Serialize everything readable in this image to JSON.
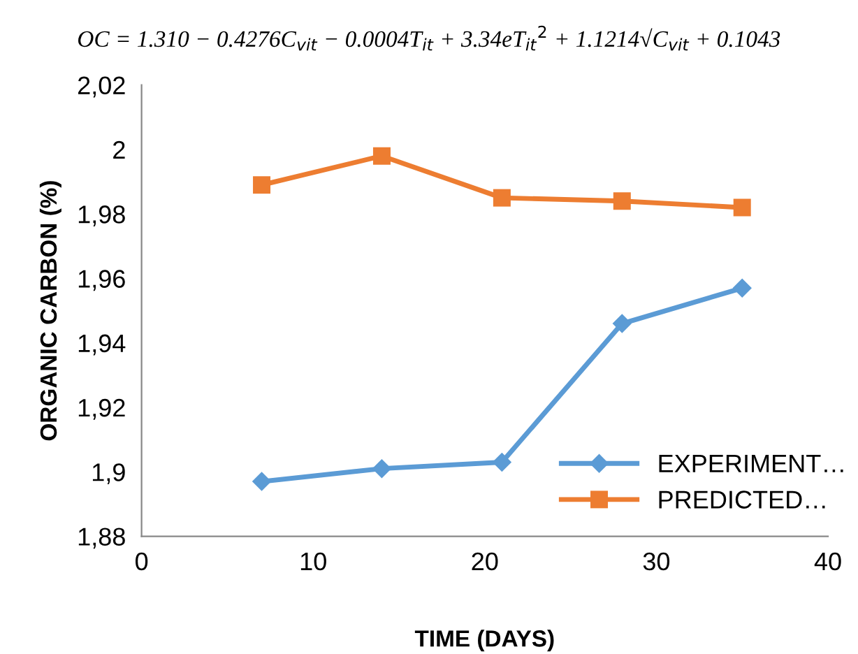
{
  "chart_data": {
    "type": "line",
    "title": "OC = 1.310 − 0.4276C$_{vit}$ − 0.0004T$_{it}$ + 3.34eT$_{it}$$^{2}$ + 1.1214√C$_{vit}$ + 0.1043",
    "xlabel": "TIME (DAYS)",
    "ylabel": "ORGANIC CARBON (%)",
    "x": [
      7,
      14,
      21,
      28,
      35
    ],
    "series": [
      {
        "name": "EXPERIMENT…",
        "color": "#5b9bd5",
        "marker": "diamond",
        "values": [
          1.897,
          1.901,
          1.903,
          1.946,
          1.957
        ]
      },
      {
        "name": "PREDICTED…",
        "color": "#ed7d31",
        "marker": "square",
        "values": [
          1.989,
          1.998,
          1.985,
          1.984,
          1.982
        ]
      }
    ],
    "xlim": [
      0,
      40
    ],
    "xticks": [
      0,
      10,
      20,
      30,
      40
    ],
    "ylim": [
      1.88,
      2.02
    ],
    "yticks": [
      {
        "value": 1.88,
        "label": "1,88"
      },
      {
        "value": 1.9,
        "label": "1,9"
      },
      {
        "value": 1.92,
        "label": "1,92"
      },
      {
        "value": 1.94,
        "label": "1,94"
      },
      {
        "value": 1.96,
        "label": "1,96"
      },
      {
        "value": 1.98,
        "label": "1,98"
      },
      {
        "value": 2,
        "label": "2"
      },
      {
        "value": 2.02,
        "label": "2,02"
      }
    ],
    "grid": false,
    "legend": "bottom right",
    "line_style": "solid"
  }
}
